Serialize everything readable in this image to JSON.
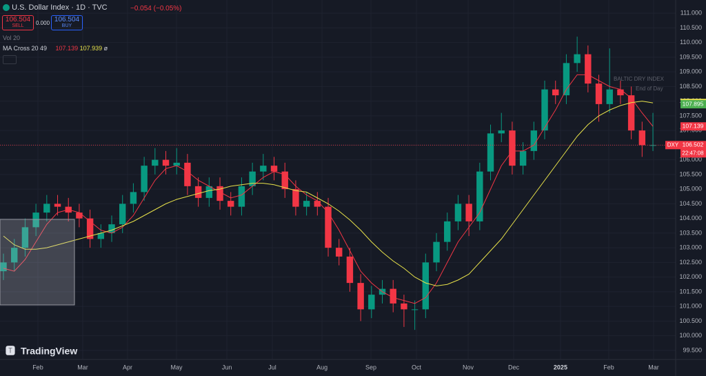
{
  "toolbar": {
    "symbol": "U.S. Dollar Index · 1D · TVC",
    "change": "−0.054 (−0.05%)",
    "sell_price": "106.504",
    "sell": "SELL",
    "spread": "0.000",
    "buy_price": "106.504",
    "buy": "BUY",
    "volume": "Vol 20",
    "indicator": "MA Cross 20 49",
    "ma_fast": "107.139",
    "ma_slow": "107.939",
    "indicator_extra": "ø"
  },
  "overlay": {
    "title": "BALTIC DRY INDEX",
    "subtitle": "End of Day"
  },
  "logo": "TradingView",
  "chart_data": {
    "type": "candlestick",
    "categories": [
      null,
      null,
      null,
      null,
      null,
      null,
      null,
      null,
      null,
      null,
      null,
      null,
      null,
      null,
      null,
      null,
      null,
      null,
      null,
      null,
      null,
      null,
      null,
      null,
      null,
      null,
      null,
      null,
      null,
      null,
      null,
      null,
      null,
      null,
      null,
      null,
      null,
      null,
      null,
      null,
      null,
      null,
      null,
      null,
      null,
      null,
      null,
      null,
      null,
      null,
      null,
      null,
      null,
      null,
      null,
      null,
      null,
      null,
      null,
      null,
      null
    ],
    "open": [
      102.2,
      102.5,
      103.0,
      103.7,
      104.2,
      104.5,
      104.4,
      104.2,
      104.0,
      103.3,
      103.5,
      103.8,
      104.5,
      104.9,
      105.8,
      106.0,
      105.8,
      105.9,
      105.1,
      104.7,
      105.1,
      104.6,
      104.4,
      105.1,
      105.6,
      105.8,
      105.6,
      105.0,
      104.4,
      104.6,
      104.4,
      103.0,
      102.7,
      101.8,
      100.9,
      101.4,
      101.6,
      101.1,
      100.9,
      100.9,
      102.5,
      103.2,
      103.9,
      104.5,
      103.9,
      105.6,
      106.9,
      107.0,
      105.8,
      106.3,
      107.0,
      108.4,
      108.2,
      109.3,
      109.6,
      108.6,
      107.9,
      108.4,
      108.2,
      107.0,
      106.5
    ],
    "high": [
      102.8,
      103.3,
      104.0,
      104.5,
      104.8,
      104.8,
      104.7,
      104.5,
      104.3,
      103.8,
      104.1,
      104.8,
      105.2,
      106.1,
      106.4,
      106.3,
      106.4,
      106.2,
      105.4,
      105.4,
      105.4,
      104.9,
      105.4,
      105.9,
      106.2,
      106.1,
      105.9,
      105.3,
      104.9,
      104.9,
      104.7,
      103.3,
      103.0,
      102.1,
      101.7,
      101.9,
      101.9,
      101.4,
      101.2,
      102.8,
      103.5,
      104.2,
      104.8,
      104.8,
      105.9,
      107.2,
      107.6,
      107.3,
      106.6,
      107.3,
      108.7,
      108.7,
      109.6,
      110.2,
      109.9,
      108.9,
      109.8,
      108.7,
      108.5,
      107.3,
      107.6
    ],
    "low": [
      101.9,
      102.2,
      102.7,
      103.4,
      103.9,
      104.1,
      103.9,
      103.7,
      103.0,
      103.0,
      103.2,
      103.5,
      104.2,
      104.6,
      105.5,
      105.5,
      105.5,
      104.8,
      104.4,
      104.4,
      104.3,
      104.1,
      104.1,
      104.8,
      105.3,
      105.3,
      104.7,
      104.1,
      104.1,
      104.1,
      102.7,
      102.4,
      101.5,
      100.5,
      100.6,
      101.1,
      100.8,
      100.3,
      100.2,
      100.6,
      102.2,
      102.9,
      103.6,
      103.4,
      103.6,
      105.3,
      106.6,
      105.5,
      105.5,
      106.0,
      106.7,
      107.9,
      107.9,
      109.0,
      108.3,
      107.3,
      107.6,
      107.9,
      106.7,
      106.1,
      106.3
    ],
    "close": [
      102.5,
      103.0,
      103.7,
      104.2,
      104.5,
      104.4,
      104.2,
      104.0,
      103.3,
      103.5,
      103.8,
      104.5,
      104.9,
      105.8,
      106.0,
      105.8,
      105.9,
      105.1,
      104.7,
      105.1,
      104.6,
      104.4,
      105.1,
      105.6,
      105.8,
      105.6,
      105.0,
      104.4,
      104.6,
      104.4,
      103.0,
      102.7,
      101.8,
      100.9,
      101.4,
      101.6,
      101.1,
      100.9,
      100.9,
      102.5,
      103.2,
      103.9,
      104.5,
      103.9,
      105.6,
      106.9,
      107.0,
      105.8,
      106.3,
      107.0,
      108.4,
      108.2,
      109.3,
      109.6,
      108.6,
      107.9,
      108.4,
      108.2,
      107.0,
      106.5,
      106.5
    ],
    "up_color": "#089981",
    "down_color": "#f23645",
    "series": [
      {
        "name": "MA 20",
        "color": "#f23645",
        "values": [
          102.3,
          102.2,
          102.6,
          103.2,
          103.8,
          104.2,
          104.3,
          104.2,
          103.9,
          103.6,
          103.5,
          103.7,
          104.1,
          104.7,
          105.3,
          105.7,
          105.8,
          105.6,
          105.3,
          105.1,
          104.9,
          104.7,
          104.8,
          105.1,
          105.4,
          105.6,
          105.5,
          105.1,
          104.8,
          104.6,
          104.2,
          103.6,
          102.9,
          102.2,
          101.8,
          101.5,
          101.3,
          101.2,
          101.1,
          101.3,
          101.8,
          102.5,
          103.2,
          103.7,
          104.2,
          105.0,
          105.8,
          106.3,
          106.3,
          106.5,
          107.1,
          107.7,
          108.4,
          108.9,
          108.9,
          108.7,
          108.5,
          108.4,
          108.1,
          107.6,
          107.14
        ]
      },
      {
        "name": "MA 49",
        "color": "#e8e24a",
        "values": [
          103.4,
          103.1,
          102.95,
          102.95,
          103.0,
          103.1,
          103.2,
          103.3,
          103.4,
          103.5,
          103.6,
          103.75,
          103.9,
          104.1,
          104.3,
          104.5,
          104.65,
          104.75,
          104.85,
          104.95,
          105.0,
          105.1,
          105.15,
          105.2,
          105.2,
          105.15,
          105.05,
          104.95,
          104.9,
          104.7,
          104.5,
          104.25,
          103.95,
          103.6,
          103.2,
          102.85,
          102.55,
          102.3,
          102.0,
          101.8,
          101.7,
          101.75,
          101.9,
          102.1,
          102.5,
          102.9,
          103.3,
          103.8,
          104.3,
          104.8,
          105.3,
          105.8,
          106.3,
          106.8,
          107.2,
          107.5,
          107.7,
          107.85,
          107.95,
          108.0,
          107.94
        ]
      }
    ],
    "xlim": [
      -0.32,
      62.1
    ],
    "xticks": [
      {
        "value": 3.18,
        "label": "Feb"
      },
      {
        "value": 7.32,
        "label": "Mar"
      },
      {
        "value": 11.46,
        "label": "Apr"
      },
      {
        "value": 15.99,
        "label": "May"
      },
      {
        "value": 20.64,
        "label": "Jun"
      },
      {
        "value": 24.84,
        "label": "Jul"
      },
      {
        "value": 29.43,
        "label": "Aug"
      },
      {
        "value": 33.95,
        "label": "Sep"
      },
      {
        "value": 38.15,
        "label": "Oct"
      },
      {
        "value": 42.93,
        "label": "Nov"
      },
      {
        "value": 47.13,
        "label": "Dec"
      },
      {
        "value": 51.46,
        "label": "2025"
      },
      {
        "value": 55.92,
        "label": "Feb"
      },
      {
        "value": 60.06,
        "label": "Mar"
      }
    ],
    "ylim": [
      99.05,
      111.45
    ],
    "yticks": [
      {
        "value": 99.5,
        "label": "99.500"
      },
      {
        "value": 100,
        "label": "100.000"
      },
      {
        "value": 100.5,
        "label": "100.500"
      },
      {
        "value": 101,
        "label": "101.000"
      },
      {
        "value": 101.5,
        "label": "101.500"
      },
      {
        "value": 102,
        "label": "102.000"
      },
      {
        "value": 102.5,
        "label": "102.500"
      },
      {
        "value": 103,
        "label": "103.000"
      },
      {
        "value": 103.5,
        "label": "103.500"
      },
      {
        "value": 104,
        "label": "104.000"
      },
      {
        "value": 104.5,
        "label": "104.500"
      },
      {
        "value": 105,
        "label": "105.000"
      },
      {
        "value": 105.5,
        "label": "105.500"
      },
      {
        "value": 106,
        "label": "106.000"
      },
      {
        "value": 106.5,
        "label": "106.500"
      },
      {
        "value": 107,
        "label": "107.000"
      },
      {
        "value": 107.5,
        "label": "107.500"
      },
      {
        "value": 108,
        "label": "108.000"
      },
      {
        "value": 108.5,
        "label": "108.500"
      },
      {
        "value": 109,
        "label": "109.000"
      },
      {
        "value": 109.5,
        "label": "109.500"
      },
      {
        "value": 110,
        "label": "110.000"
      },
      {
        "value": 110.5,
        "label": "110.500"
      },
      {
        "value": 111,
        "label": "111.000"
      }
    ],
    "grid": true,
    "price_labels": [
      {
        "value": 107.939,
        "label": "107.939",
        "color": "#e8e24a"
      },
      {
        "value": 107.895,
        "label": "107.895",
        "color": "#4caf50"
      },
      {
        "value": 107.139,
        "label": "107.139",
        "color": "#f23645"
      },
      {
        "value": 106.502,
        "label": "106.502",
        "color": "#f23645",
        "tag": "DXY",
        "countdown": "22:47:08"
      }
    ]
  }
}
